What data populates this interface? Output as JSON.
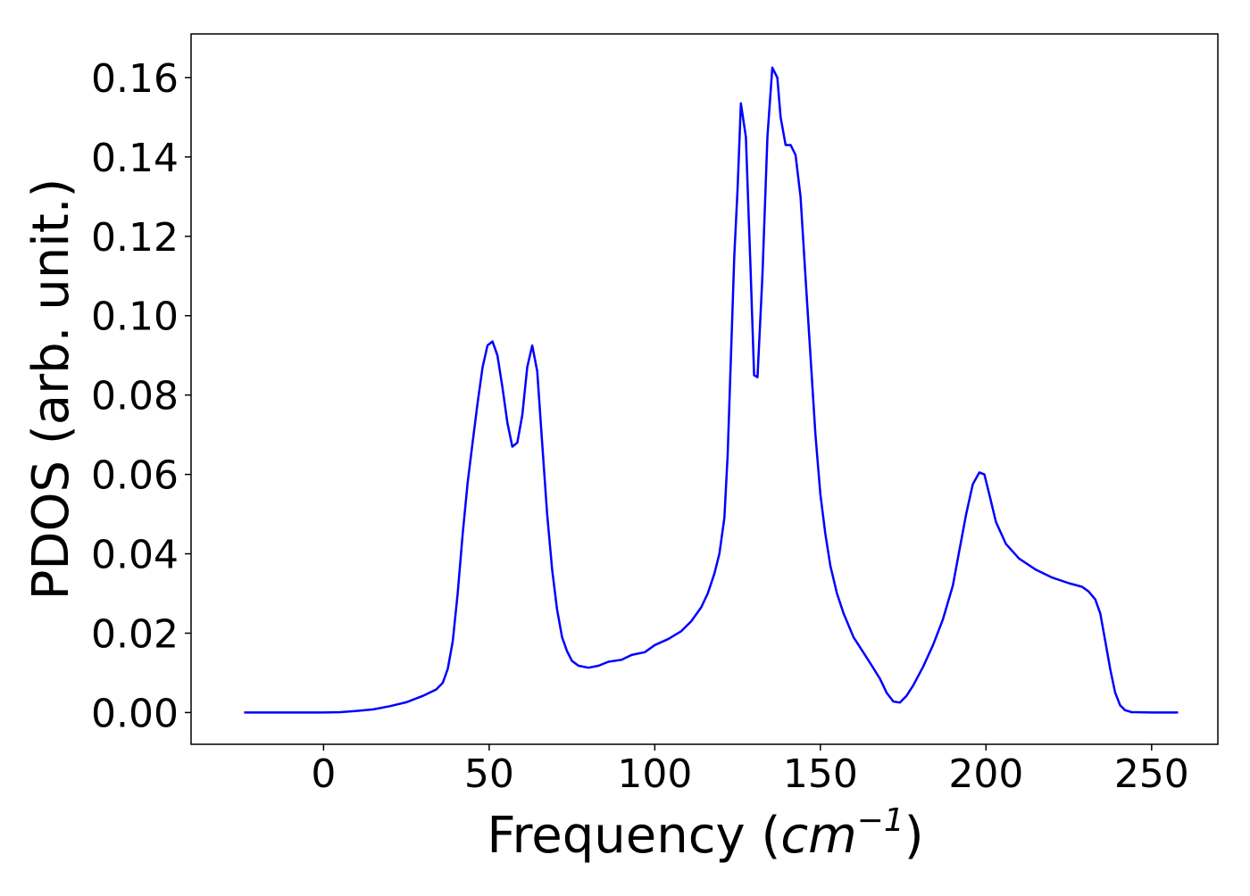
{
  "chart_data": {
    "type": "line",
    "title": "",
    "xlabel": "Frequency (cm⁻¹)",
    "xlabel_parts": {
      "prefix": "Frequency (",
      "unit_base": "cm",
      "unit_exp": "−1",
      "suffix": ")"
    },
    "ylabel": "PDOS (arb. unit.)",
    "xlim": [
      -40,
      270
    ],
    "ylim": [
      -0.008,
      0.171
    ],
    "x_ticks": [
      0,
      50,
      100,
      150,
      200,
      250
    ],
    "x_tick_labels": [
      "0",
      "50",
      "100",
      "150",
      "200",
      "250"
    ],
    "y_ticks": [
      0.0,
      0.02,
      0.04,
      0.06,
      0.08,
      0.1,
      0.12,
      0.14,
      0.16
    ],
    "y_tick_labels": [
      "0.00",
      "0.02",
      "0.04",
      "0.06",
      "0.08",
      "0.10",
      "0.12",
      "0.14",
      "0.16"
    ],
    "grid": false,
    "legend": null,
    "series": [
      {
        "color": "#0000ff",
        "points": [
          [
            -24,
            0.0
          ],
          [
            -10,
            0.0
          ],
          [
            0,
            0.0
          ],
          [
            5,
            0.0001
          ],
          [
            10,
            0.0004
          ],
          [
            15,
            0.0008
          ],
          [
            20,
            0.0016
          ],
          [
            25,
            0.0026
          ],
          [
            30,
            0.0042
          ],
          [
            34,
            0.0058
          ],
          [
            36,
            0.0075
          ],
          [
            37.5,
            0.011
          ],
          [
            39,
            0.018
          ],
          [
            40.5,
            0.03
          ],
          [
            42,
            0.045
          ],
          [
            43.5,
            0.058
          ],
          [
            45,
            0.068
          ],
          [
            46.5,
            0.078
          ],
          [
            48,
            0.087
          ],
          [
            49.5,
            0.0925
          ],
          [
            51,
            0.0935
          ],
          [
            52.5,
            0.09
          ],
          [
            54,
            0.082
          ],
          [
            55.5,
            0.073
          ],
          [
            57,
            0.067
          ],
          [
            58.5,
            0.068
          ],
          [
            60,
            0.075
          ],
          [
            61.5,
            0.087
          ],
          [
            63,
            0.0925
          ],
          [
            64.5,
            0.086
          ],
          [
            66,
            0.068
          ],
          [
            67.5,
            0.05
          ],
          [
            69,
            0.036
          ],
          [
            70.5,
            0.026
          ],
          [
            72,
            0.019
          ],
          [
            73.5,
            0.0155
          ],
          [
            75,
            0.013
          ],
          [
            77,
            0.0118
          ],
          [
            80,
            0.0113
          ],
          [
            83,
            0.0118
          ],
          [
            86,
            0.0128
          ],
          [
            90,
            0.0133
          ],
          [
            93,
            0.0145
          ],
          [
            97,
            0.0152
          ],
          [
            100,
            0.017
          ],
          [
            104,
            0.0185
          ],
          [
            108,
            0.0205
          ],
          [
            111,
            0.023
          ],
          [
            114,
            0.0265
          ],
          [
            116,
            0.03
          ],
          [
            118,
            0.035
          ],
          [
            119.5,
            0.04
          ],
          [
            121,
            0.049
          ],
          [
            122,
            0.065
          ],
          [
            123,
            0.09
          ],
          [
            124,
            0.115
          ],
          [
            125,
            0.132
          ],
          [
            126,
            0.1535
          ],
          [
            127.5,
            0.145
          ],
          [
            129,
            0.11
          ],
          [
            130,
            0.085
          ],
          [
            131,
            0.0845
          ],
          [
            132.5,
            0.11
          ],
          [
            134,
            0.145
          ],
          [
            135.5,
            0.1625
          ],
          [
            137,
            0.16
          ],
          [
            138,
            0.15
          ],
          [
            139.5,
            0.143
          ],
          [
            141,
            0.143
          ],
          [
            142.5,
            0.1405
          ],
          [
            144,
            0.13
          ],
          [
            145.5,
            0.11
          ],
          [
            147,
            0.09
          ],
          [
            148.5,
            0.07
          ],
          [
            150,
            0.055
          ],
          [
            151.5,
            0.045
          ],
          [
            153,
            0.037
          ],
          [
            155,
            0.03
          ],
          [
            157,
            0.025
          ],
          [
            160,
            0.019
          ],
          [
            165,
            0.0125
          ],
          [
            168,
            0.0085
          ],
          [
            170,
            0.005
          ],
          [
            172,
            0.0028
          ],
          [
            174,
            0.0025
          ],
          [
            176,
            0.0042
          ],
          [
            178,
            0.0068
          ],
          [
            181,
            0.0115
          ],
          [
            184,
            0.017
          ],
          [
            187,
            0.0235
          ],
          [
            190,
            0.032
          ],
          [
            192,
            0.041
          ],
          [
            194,
            0.05
          ],
          [
            196,
            0.0575
          ],
          [
            198,
            0.0605
          ],
          [
            199.5,
            0.06
          ],
          [
            201,
            0.055
          ],
          [
            203,
            0.048
          ],
          [
            206,
            0.0425
          ],
          [
            210,
            0.0388
          ],
          [
            215,
            0.036
          ],
          [
            220,
            0.034
          ],
          [
            225,
            0.0326
          ],
          [
            229,
            0.0317
          ],
          [
            231,
            0.0305
          ],
          [
            233,
            0.0285
          ],
          [
            234.5,
            0.025
          ],
          [
            236,
            0.018
          ],
          [
            237.5,
            0.011
          ],
          [
            239,
            0.005
          ],
          [
            240.5,
            0.0018
          ],
          [
            242,
            0.0006
          ],
          [
            244,
            0.0001
          ],
          [
            250,
            0.0
          ],
          [
            258,
            0.0
          ]
        ]
      }
    ]
  }
}
